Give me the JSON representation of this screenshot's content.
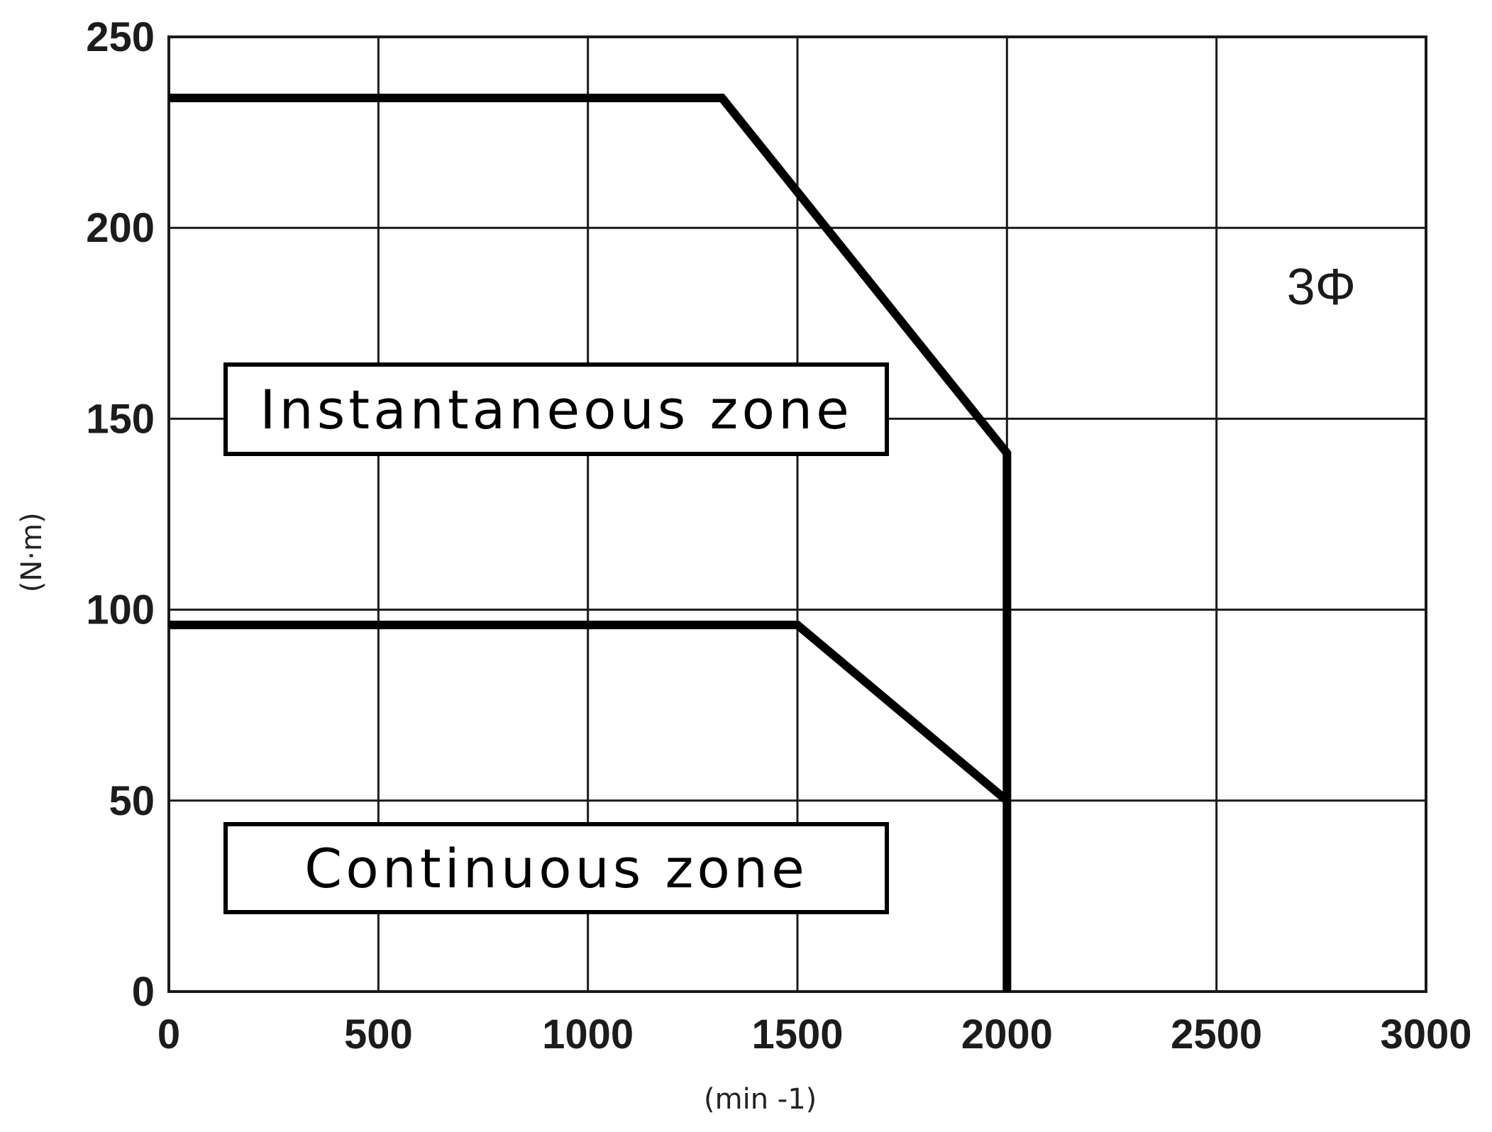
{
  "chart_data": {
    "type": "line",
    "title": "",
    "xlabel": "(min -1)",
    "ylabel": "(N·m)",
    "xlim": [
      0,
      3000
    ],
    "ylim": [
      0,
      250
    ],
    "x_ticks": [
      0,
      500,
      1000,
      1500,
      2000,
      2500,
      3000
    ],
    "y_ticks": [
      0,
      50,
      100,
      150,
      200,
      250
    ],
    "grid": true,
    "series": [
      {
        "x": [
          0,
          1320,
          2000,
          2000
        ],
        "y": [
          234,
          234,
          141,
          0
        ]
      },
      {
        "x": [
          0,
          1500,
          2000
        ],
        "y": [
          96,
          96,
          50
        ]
      }
    ],
    "annotations": {
      "instantaneous": "Instantaneous zone",
      "continuous": "Continuous zone",
      "phase": "3Φ"
    }
  },
  "colors": {
    "curve": "#000000",
    "grid": "#1a1a1a",
    "frame": "#1a1a1a",
    "box_border": "#000000"
  }
}
